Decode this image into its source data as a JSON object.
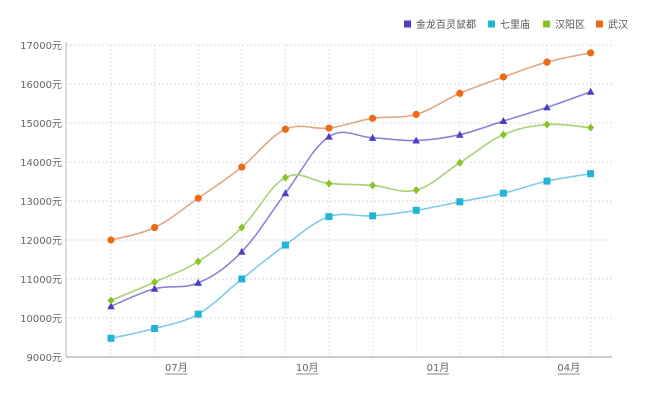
{
  "chart_data": {
    "type": "line",
    "x_tick_labels": [
      "07月",
      "10月",
      "01月",
      "04月"
    ],
    "x_tick_indices": [
      1,
      4,
      7,
      10
    ],
    "y_tick_labels": [
      "9000元",
      "10000元",
      "11000元",
      "12000元",
      "13000元",
      "14000元",
      "15000元",
      "16000元",
      "17000元"
    ],
    "ylim": [
      9000,
      17000
    ],
    "y_ticks": [
      9000,
      10000,
      11000,
      12000,
      13000,
      14000,
      15000,
      16000,
      17000
    ],
    "grid": true,
    "legend_position": "top-right",
    "x_count": 12,
    "series": [
      {
        "name": "金龙百灵鼠都",
        "color": "#4b3fc4",
        "line_color": "#8a84d6",
        "marker": "triangle",
        "values": [
          10300,
          10750,
          10900,
          11700,
          13200,
          14650,
          14620,
          14550,
          14700,
          15050,
          15400,
          15800
        ]
      },
      {
        "name": "七里庙",
        "color": "#22b5d8",
        "line_color": "#7ccde3",
        "marker": "square",
        "values": [
          9480,
          9730,
          10100,
          11000,
          11870,
          12600,
          12620,
          12760,
          12980,
          13200,
          13510,
          13700
        ]
      },
      {
        "name": "汉阳区",
        "color": "#88c424",
        "line_color": "#a9d178",
        "marker": "diamond",
        "values": [
          10450,
          10920,
          11450,
          12320,
          13600,
          13450,
          13400,
          13280,
          13980,
          14700,
          14960,
          14880
        ]
      },
      {
        "name": "武汉",
        "color": "#ee6a14",
        "line_color": "#e2a782",
        "marker": "circle",
        "values": [
          12000,
          12320,
          13070,
          13870,
          14840,
          14870,
          15120,
          15220,
          15760,
          16180,
          16560,
          16800
        ]
      }
    ]
  }
}
